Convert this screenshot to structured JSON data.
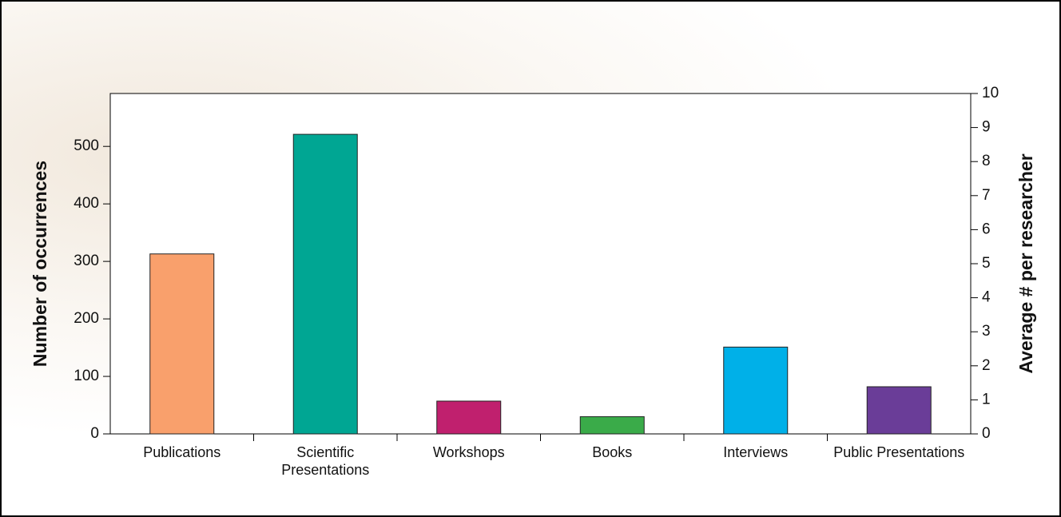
{
  "chart_data": {
    "type": "bar",
    "categories": [
      "Publications",
      "Scientific Presentations",
      "Workshops",
      "Books",
      "Interviews",
      "Public Presentations"
    ],
    "values": [
      313,
      521,
      57,
      30,
      151,
      82
    ],
    "colors": [
      "#f9a06c",
      "#00a693",
      "#c0206e",
      "#3aab49",
      "#00b0e8",
      "#6a3d98"
    ],
    "ylabel": "Number of occurrences",
    "y2label": "Average # per researcher",
    "ylim": [
      0,
      592
    ],
    "yticks": [
      0,
      100,
      200,
      300,
      400,
      500
    ],
    "y2lim": [
      0,
      10
    ],
    "y2ticks": [
      0,
      1,
      2,
      3,
      4,
      5,
      6,
      7,
      8,
      9,
      10
    ]
  }
}
